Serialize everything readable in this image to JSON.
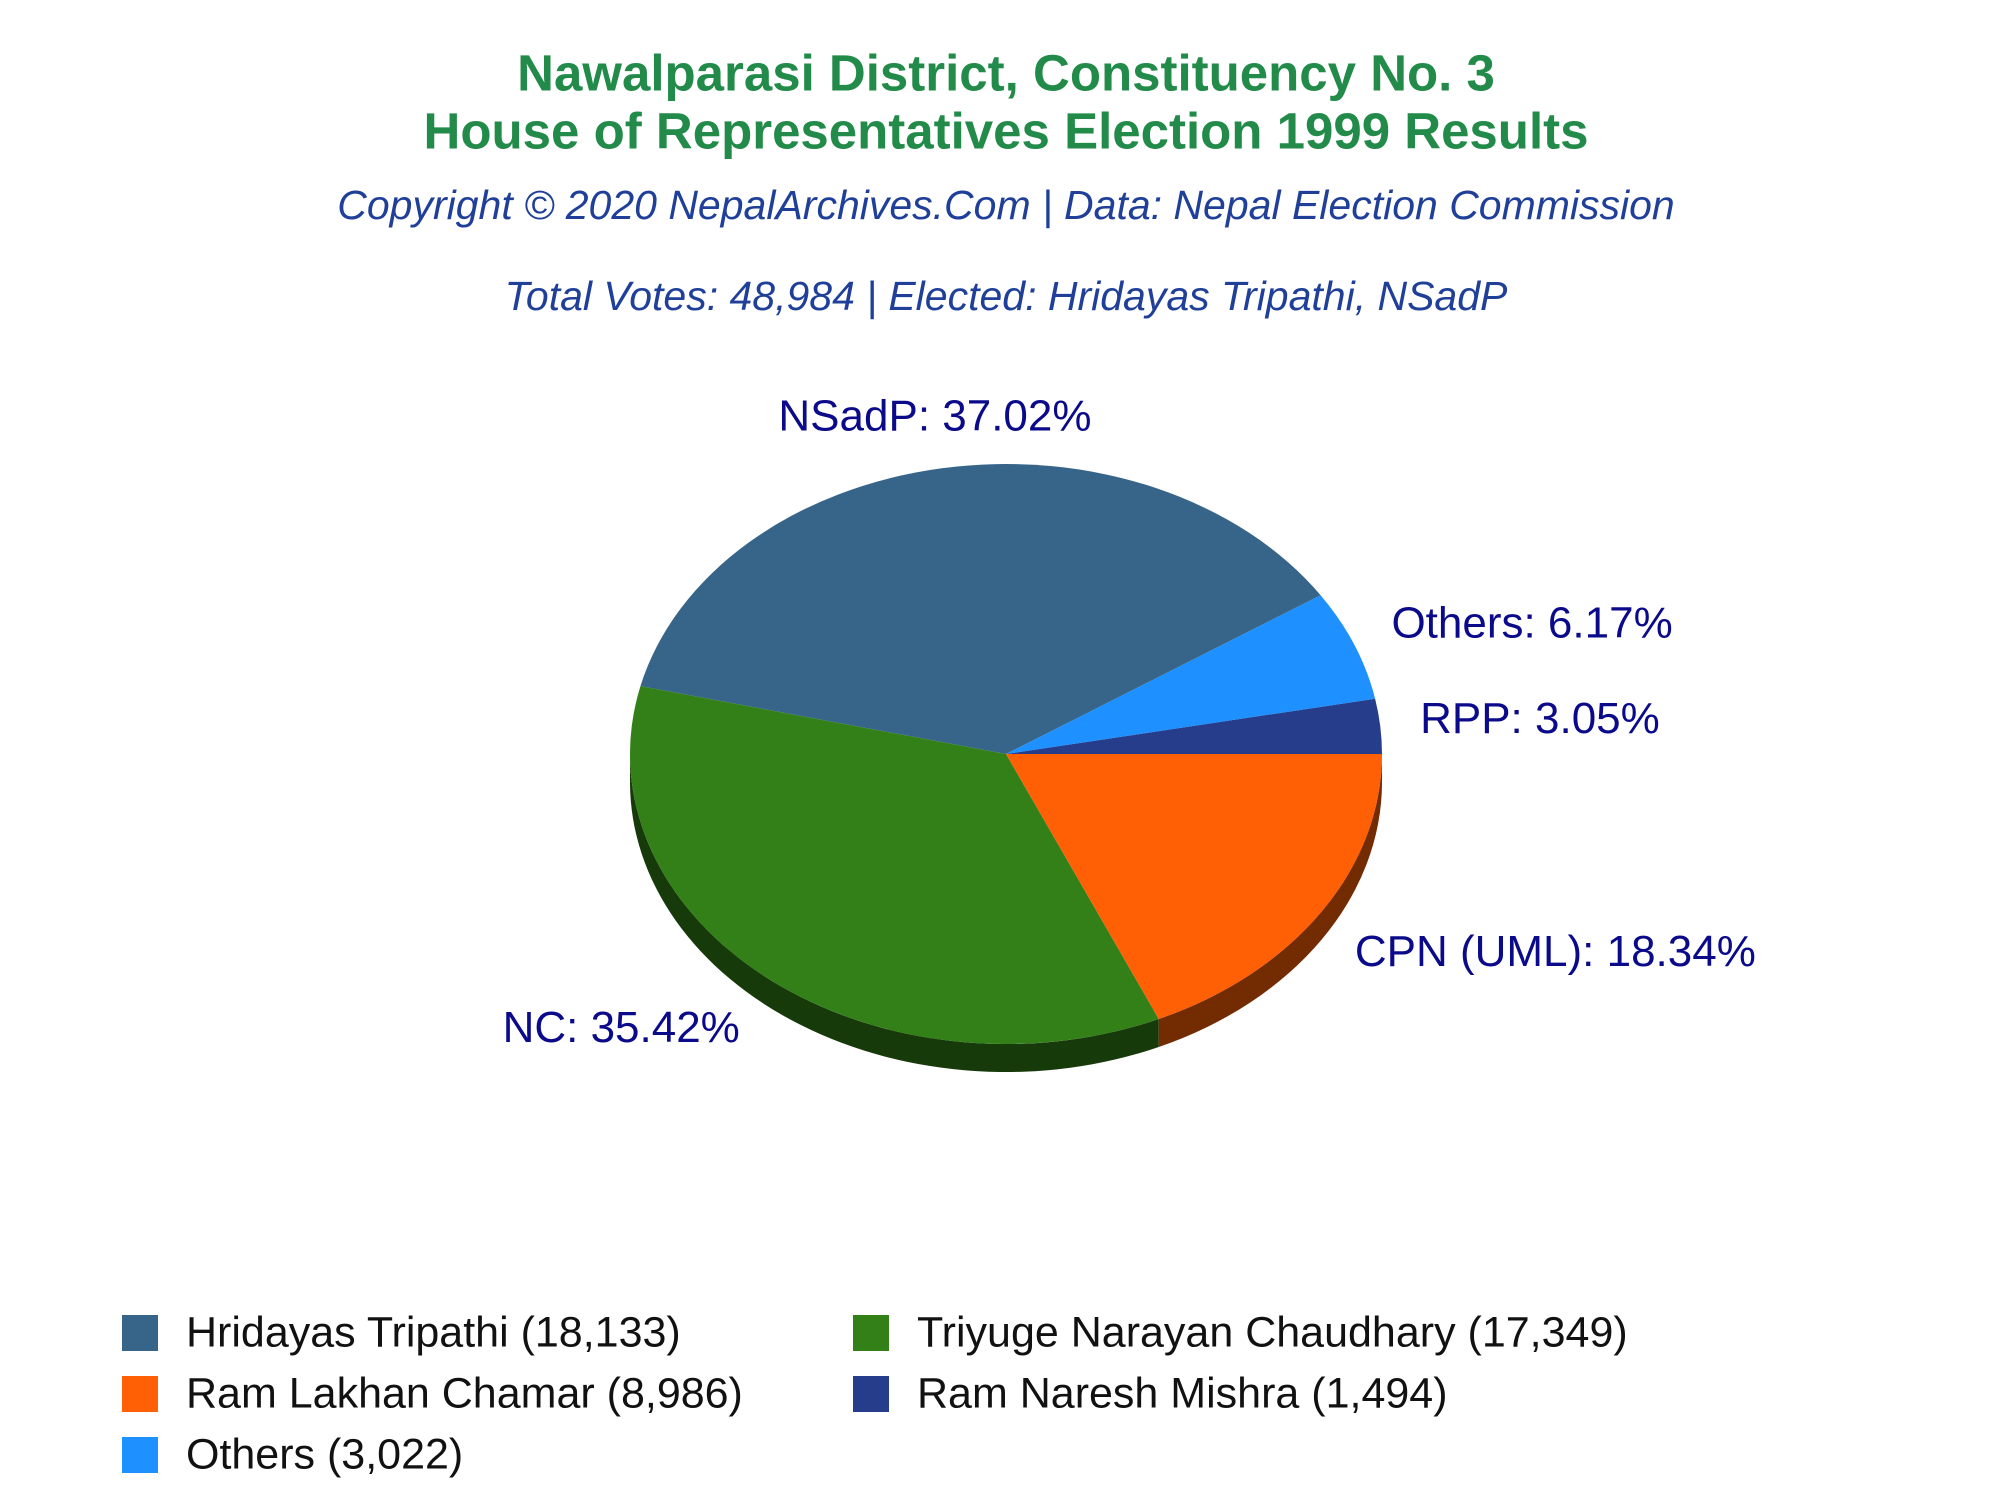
{
  "chart_data": {
    "type": "pie",
    "title": [
      "Nawalparasi District, Constituency No. 3",
      "House of Representatives Election 1999 Results"
    ],
    "subtitle": "Copyright © 2020 NepalArchives.Com | Data: Nepal Election Commission",
    "annotation": "Total Votes: 48,984 | Elected: Hridayas Tripathi, NSadP",
    "categories": [
      "Hridayas Tripathi (18,133)",
      "Triyuge Narayan Chaudhary (17,349)",
      "Ram Lakhan Chamar (8,986)",
      "Ram Naresh Mishra (1,494)",
      "Others (3,022)"
    ],
    "values": [
      18133,
      17349,
      8986,
      1494,
      3022
    ],
    "labels": [
      "NSadP: 37.02%",
      "NC: 35.42%",
      "CPN (UML): 18.34%",
      "RPP: 3.05%",
      "Others: 6.17%"
    ],
    "colors": [
      "#37658a",
      "#338018",
      "#ff6005",
      "#263d8c",
      "#1e90ff"
    ],
    "legend": "bottom"
  }
}
